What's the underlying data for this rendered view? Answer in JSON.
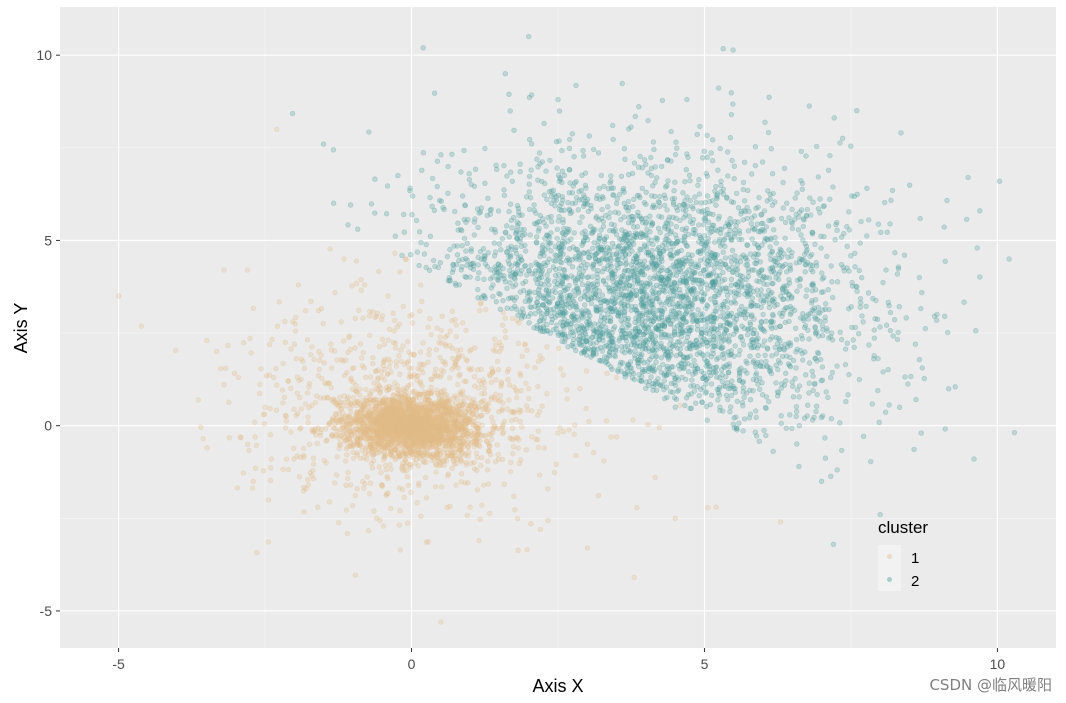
{
  "chart_data": {
    "type": "scatter",
    "title": "",
    "xlabel": "Axis X",
    "ylabel": "Axis Y",
    "xlim": [
      -6,
      11
    ],
    "ylim": [
      -6,
      11.3
    ],
    "xticks": [
      -5,
      0,
      5,
      10
    ],
    "yticks": [
      -5,
      0,
      5,
      10
    ],
    "xtick_labels": [
      "-5",
      "0",
      "5",
      "10"
    ],
    "ytick_labels": [
      "-5",
      "0",
      "5",
      "10"
    ],
    "grid": true,
    "legend": {
      "title": "cluster",
      "placement": "inside-bottom-right",
      "entries": [
        "1",
        "2"
      ]
    },
    "series": [
      {
        "name": "1",
        "color": "#E3BC88",
        "description_points": [
          [
            -5.0,
            3.5
          ],
          [
            -3.2,
            4.2
          ],
          [
            -2.8,
            4.2
          ],
          [
            -2.5,
            0.5
          ],
          [
            -3.2,
            1.1
          ],
          [
            -2.3,
            8.0
          ],
          [
            -2.0,
            2.2
          ],
          [
            -1.8,
            -1.7
          ],
          [
            -1.6,
            -2.2
          ],
          [
            -1.2,
            2.8
          ],
          [
            -0.8,
            3.8
          ],
          [
            -0.4,
            3.5
          ],
          [
            -0.1,
            4.5
          ],
          [
            0.0,
            0.0
          ],
          [
            -0.3,
            0.4
          ],
          [
            0.3,
            -0.3
          ],
          [
            0.6,
            0.5
          ],
          [
            -0.6,
            -0.4
          ],
          [
            1.0,
            1.5
          ],
          [
            1.5,
            2.0
          ],
          [
            2.0,
            1.0
          ],
          [
            2.5,
            -0.2
          ],
          [
            3.0,
            -0.5
          ],
          [
            3.5,
            -0.3
          ],
          [
            1.0,
            -2.2
          ],
          [
            2.2,
            -2.8
          ],
          [
            3.0,
            -3.3
          ],
          [
            3.8,
            -4.1
          ],
          [
            0.5,
            -5.3
          ],
          [
            4.5,
            -2.5
          ],
          [
            5.2,
            -2.2
          ],
          [
            6.3,
            -2.6
          ]
        ]
      },
      {
        "name": "2",
        "color": "#4E9E9E",
        "description_points": [
          [
            0.2,
            10.2
          ],
          [
            2.0,
            10.5
          ],
          [
            1.6,
            9.5
          ],
          [
            2.5,
            8.8
          ],
          [
            4.7,
            8.8
          ],
          [
            7.6,
            8.5
          ],
          [
            -1.5,
            7.6
          ],
          [
            9.5,
            6.7
          ],
          [
            9.7,
            5.8
          ],
          [
            10.2,
            4.5
          ],
          [
            8.6,
            2.2
          ],
          [
            9.6,
            -0.9
          ],
          [
            7.2,
            -3.2
          ],
          [
            7.0,
            -1.5
          ],
          [
            8.0,
            -2.4
          ],
          [
            8.7,
            -0.2
          ],
          [
            3.0,
            4.0
          ],
          [
            4.0,
            3.0
          ],
          [
            2.5,
            2.5
          ],
          [
            5.0,
            4.5
          ],
          [
            6.0,
            3.0
          ],
          [
            5.5,
            1.0
          ],
          [
            4.5,
            0.5
          ],
          [
            3.5,
            6.0
          ]
        ]
      }
    ]
  },
  "watermark": "CSDN @临风暖阳"
}
